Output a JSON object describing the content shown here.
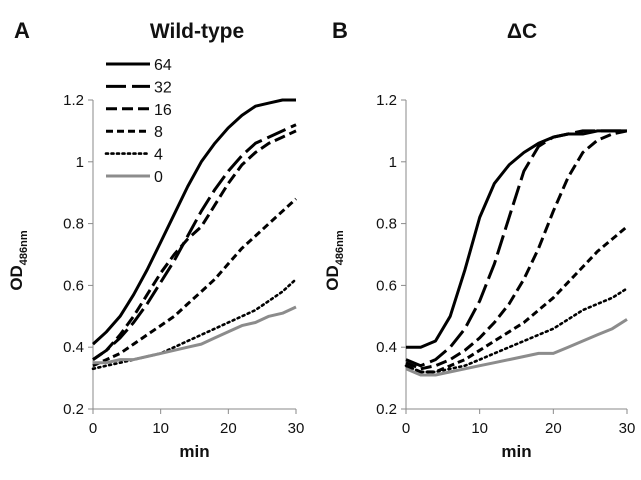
{
  "chart_data": [
    {
      "type": "line",
      "panel_letter": "A",
      "title": "Wild-type",
      "xlabel": "min",
      "ylabel": "OD",
      "ylabel_subscript": "486nm",
      "xlim": [
        0,
        30
      ],
      "ylim": [
        0.2,
        1.2
      ],
      "x_ticks": [
        0,
        10,
        20,
        30
      ],
      "y_ticks": [
        0.2,
        0.4,
        0.6,
        0.8,
        1.0,
        1.2
      ],
      "y_tick_labels": [
        "0.2",
        "0.4",
        "0.6",
        "0.8",
        "1",
        "1.2"
      ],
      "grid": false,
      "legend_position": "top-left",
      "x": [
        0,
        2,
        4,
        6,
        8,
        10,
        12,
        14,
        16,
        18,
        20,
        22,
        24,
        26,
        28,
        30
      ],
      "series": [
        {
          "name": "64",
          "color": "#000000",
          "dash": "solid",
          "values": [
            0.41,
            0.45,
            0.5,
            0.57,
            0.65,
            0.74,
            0.83,
            0.92,
            1.0,
            1.06,
            1.11,
            1.15,
            1.18,
            1.19,
            1.2,
            1.2
          ]
        },
        {
          "name": "32",
          "color": "#000000",
          "dash": "longdash",
          "values": [
            0.36,
            0.39,
            0.43,
            0.48,
            0.54,
            0.61,
            0.68,
            0.76,
            0.84,
            0.91,
            0.97,
            1.02,
            1.06,
            1.08,
            1.1,
            1.12
          ]
        },
        {
          "name": "16",
          "color": "#000000",
          "dash": "dash",
          "values": [
            0.36,
            0.39,
            0.44,
            0.5,
            0.57,
            0.64,
            0.7,
            0.75,
            0.79,
            0.86,
            0.93,
            0.99,
            1.03,
            1.06,
            1.08,
            1.1
          ]
        },
        {
          "name": "8",
          "color": "#000000",
          "dash": "shortdash",
          "values": [
            0.34,
            0.36,
            0.38,
            0.41,
            0.44,
            0.47,
            0.5,
            0.54,
            0.58,
            0.62,
            0.67,
            0.72,
            0.76,
            0.8,
            0.84,
            0.88
          ]
        },
        {
          "name": "4",
          "color": "#000000",
          "dash": "dot",
          "values": [
            0.33,
            0.34,
            0.35,
            0.36,
            0.37,
            0.38,
            0.4,
            0.42,
            0.44,
            0.46,
            0.48,
            0.5,
            0.52,
            0.55,
            0.58,
            0.62
          ]
        },
        {
          "name": "0",
          "color": "#8c8c8c",
          "dash": "solid",
          "values": [
            0.35,
            0.35,
            0.36,
            0.36,
            0.37,
            0.38,
            0.39,
            0.4,
            0.41,
            0.43,
            0.45,
            0.47,
            0.48,
            0.5,
            0.51,
            0.53
          ]
        }
      ]
    },
    {
      "type": "line",
      "panel_letter": "B",
      "title": "ΔC",
      "xlabel": "min",
      "ylabel": "OD",
      "ylabel_subscript": "486nm",
      "xlim": [
        0,
        30
      ],
      "ylim": [
        0.2,
        1.2
      ],
      "x_ticks": [
        0,
        10,
        20,
        30
      ],
      "y_ticks": [
        0.2,
        0.4,
        0.6,
        0.8,
        1.0,
        1.2
      ],
      "y_tick_labels": [
        "0.2",
        "0.4",
        "0.6",
        "0.8",
        "1",
        "1.2"
      ],
      "grid": false,
      "x": [
        0,
        2,
        4,
        6,
        8,
        10,
        12,
        14,
        16,
        18,
        20,
        22,
        24,
        26,
        28,
        30
      ],
      "series": [
        {
          "name": "64",
          "color": "#000000",
          "dash": "solid",
          "values": [
            0.4,
            0.4,
            0.42,
            0.5,
            0.65,
            0.82,
            0.93,
            0.99,
            1.03,
            1.06,
            1.08,
            1.09,
            1.09,
            1.1,
            1.1,
            1.1
          ]
        },
        {
          "name": "32",
          "color": "#000000",
          "dash": "longdash",
          "values": [
            0.36,
            0.34,
            0.36,
            0.4,
            0.46,
            0.55,
            0.67,
            0.82,
            0.97,
            1.05,
            1.08,
            1.09,
            1.1,
            1.1,
            1.1,
            1.1
          ]
        },
        {
          "name": "16",
          "color": "#000000",
          "dash": "dash",
          "values": [
            0.35,
            0.33,
            0.34,
            0.36,
            0.39,
            0.43,
            0.48,
            0.54,
            0.62,
            0.72,
            0.84,
            0.95,
            1.03,
            1.07,
            1.09,
            1.1
          ]
        },
        {
          "name": "8",
          "color": "#000000",
          "dash": "shortdash",
          "values": [
            0.34,
            0.32,
            0.32,
            0.34,
            0.36,
            0.39,
            0.42,
            0.45,
            0.48,
            0.52,
            0.56,
            0.61,
            0.66,
            0.71,
            0.75,
            0.79
          ]
        },
        {
          "name": "4",
          "color": "#000000",
          "dash": "dot",
          "values": [
            0.34,
            0.32,
            0.32,
            0.33,
            0.34,
            0.36,
            0.38,
            0.4,
            0.42,
            0.44,
            0.46,
            0.49,
            0.52,
            0.54,
            0.56,
            0.59
          ]
        },
        {
          "name": "0",
          "color": "#8c8c8c",
          "dash": "solid",
          "values": [
            0.33,
            0.31,
            0.31,
            0.32,
            0.33,
            0.34,
            0.35,
            0.36,
            0.37,
            0.38,
            0.38,
            0.4,
            0.42,
            0.44,
            0.46,
            0.49
          ]
        }
      ]
    }
  ]
}
